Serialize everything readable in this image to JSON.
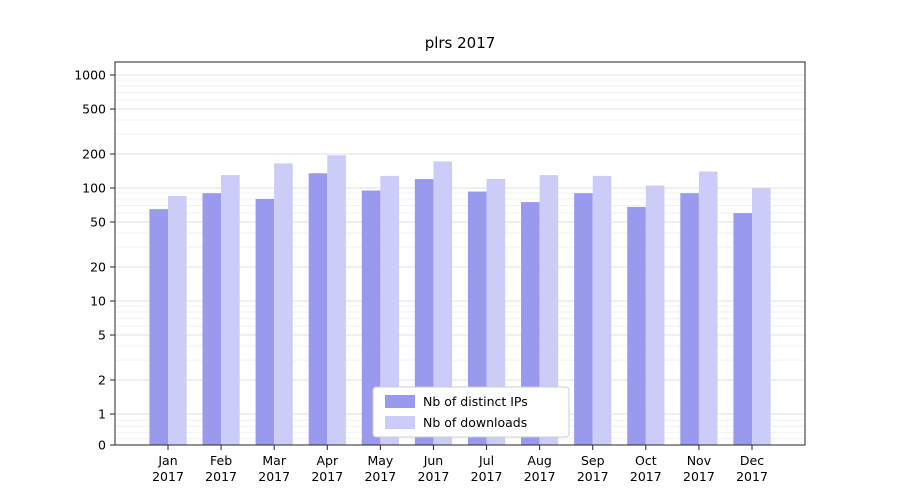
{
  "chart_data": {
    "type": "bar",
    "title": "plrs 2017",
    "scale": "symlog",
    "xlabel": "",
    "ylabel": "",
    "grid": true,
    "legend_position": "lower center",
    "categories": [
      "Jan 2017",
      "Feb 2017",
      "Mar 2017",
      "Apr 2017",
      "May 2017",
      "Jun 2017",
      "Jul 2017",
      "Aug 2017",
      "Sep 2017",
      "Oct 2017",
      "Nov 2017",
      "Dec 2017"
    ],
    "series": [
      {
        "name": "Nb of distinct IPs",
        "color": "#9999ee",
        "values": [
          65,
          90,
          80,
          135,
          95,
          120,
          93,
          75,
          90,
          68,
          90,
          60
        ]
      },
      {
        "name": "Nb of downloads",
        "color": "#ccccf9",
        "values": [
          85,
          130,
          165,
          195,
          128,
          172,
          120,
          130,
          128,
          105,
          140,
          100
        ]
      }
    ],
    "yticks": [
      0,
      1,
      2,
      5,
      10,
      20,
      50,
      100,
      200,
      500,
      1000
    ],
    "ylim": [
      0,
      1000
    ],
    "colors": {
      "major_grid": "#e0e0e0",
      "minor_grid": "#f2f2f2",
      "axis": "#262626",
      "legend_border": "#cccccc"
    }
  }
}
